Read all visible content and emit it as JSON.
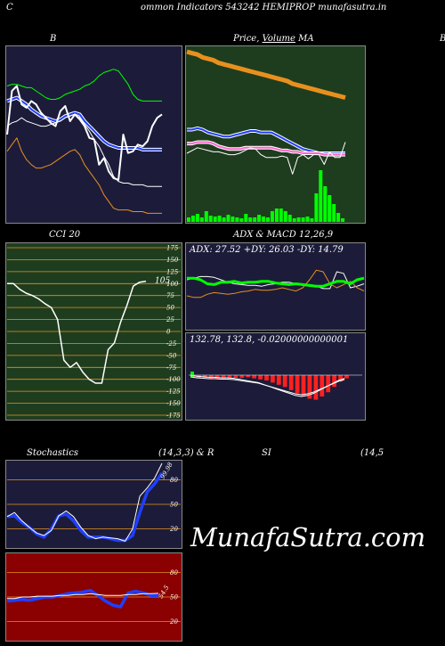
{
  "header": {
    "title": "ommon  Indicators 543242  HEMIPROP munafasutra.in",
    "left_letter": "C"
  },
  "watermark": "MunafaSutra.com",
  "panels": {
    "bollinger": {
      "title": "B",
      "right_edge_label": "B"
    },
    "price": {
      "title_a": "Price,",
      "title_b": "Volume",
      "title_c": "MA"
    },
    "cci": {
      "title": "CCI 20",
      "value_label": "105"
    },
    "adx_macd": {
      "title": "ADX  & MACD 12,26,9",
      "adx_text": "ADX: 27.52  +DY: 26.03 -DY: 14.79",
      "macd_text": "132.78,  132.8,  -0.02000000000001"
    },
    "stochastics": {
      "title": "Stochastics",
      "params": "(14,3,3) & R",
      "value_label": "99.98"
    },
    "rsi": {
      "title": "SI",
      "params": "(14,5",
      "value_label": "54.5"
    }
  },
  "colors": {
    "dark_navy": "#1c1c3a",
    "dark_green": "#1e3d1e",
    "dark_red": "#8b0000",
    "orange": "#e8901e",
    "blue": "#1f3fff",
    "green_bright": "#00ff00",
    "white": "#ffffff"
  },
  "chart_data": [
    {
      "type": "line",
      "name": "bollinger",
      "ylim": [
        0,
        100
      ],
      "series": [
        {
          "values": [
            79,
            80,
            80,
            79,
            78,
            78,
            76,
            74,
            72,
            71,
            71,
            72,
            74,
            75,
            76,
            77,
            79,
            80,
            82,
            85,
            87,
            88,
            89,
            88,
            84,
            80,
            74,
            71,
            70,
            70,
            70,
            70,
            70
          ]
        },
        {
          "values": [
            70,
            71,
            72,
            70,
            68,
            65,
            63,
            61,
            60,
            59,
            58,
            59,
            61,
            62,
            63,
            62,
            58,
            55,
            52,
            49,
            46,
            44,
            43,
            42,
            42,
            42,
            42,
            42,
            41,
            41,
            41,
            41,
            41
          ]
        },
        {
          "values": [
            55,
            57,
            58,
            60,
            58,
            57,
            56,
            55,
            55,
            56,
            57,
            58,
            60,
            61,
            62,
            60,
            56,
            52,
            47,
            43,
            37,
            32,
            25,
            22,
            21,
            21,
            20,
            20,
            20,
            19,
            19,
            19,
            19
          ]
        },
        {
          "values": [
            40,
            44,
            48,
            40,
            35,
            32,
            30,
            30,
            31,
            32,
            34,
            36,
            38,
            40,
            41,
            38,
            32,
            28,
            24,
            20,
            14,
            10,
            6,
            5,
            5,
            5,
            4,
            4,
            4,
            3,
            3,
            3,
            3
          ]
        },
        {
          "values": [
            50,
            76,
            79,
            68,
            66,
            70,
            68,
            63,
            60,
            57,
            55,
            64,
            67,
            58,
            62,
            59,
            55,
            48,
            47,
            32,
            36,
            28,
            24,
            23,
            50,
            39,
            40,
            44,
            43,
            46,
            55,
            60,
            62
          ]
        }
      ]
    },
    {
      "type": "line",
      "name": "price-ma",
      "ylim": [
        0,
        100
      ],
      "series": [
        {
          "values": [
            98,
            97,
            96,
            94,
            93,
            92,
            90,
            89,
            88,
            87,
            86,
            85,
            84,
            83,
            82,
            81,
            80,
            79,
            78,
            77,
            75,
            74,
            73,
            72,
            71,
            70,
            69,
            68,
            67,
            66,
            65
          ]
        },
        {
          "values": [
            42,
            42,
            43,
            42,
            40,
            39,
            38,
            37,
            37,
            38,
            39,
            40,
            41,
            41,
            40,
            40,
            40,
            38,
            36,
            34,
            32,
            30,
            28,
            27,
            26,
            25,
            25,
            25,
            25,
            25,
            25
          ]
        },
        {
          "values": [
            32,
            32,
            33,
            33,
            33,
            32,
            30,
            29,
            28,
            28,
            28,
            29,
            29,
            29,
            29,
            29,
            29,
            28,
            27,
            27,
            26,
            26,
            25,
            25,
            25,
            25,
            24,
            24,
            24,
            24,
            24
          ]
        },
        {
          "values": [
            25,
            27,
            29,
            28,
            27,
            26,
            26,
            25,
            24,
            24,
            25,
            27,
            29,
            28,
            24,
            22,
            22,
            22,
            23,
            22,
            10,
            22,
            24,
            21,
            24,
            24,
            17,
            26,
            22,
            22,
            33
          ]
        }
      ]
    },
    {
      "type": "bar",
      "name": "volume",
      "ylim": [
        0,
        100
      ],
      "values": [
        5,
        7,
        9,
        5,
        12,
        7,
        6,
        7,
        5,
        8,
        6,
        5,
        4,
        9,
        5,
        5,
        8,
        6,
        5,
        12,
        15,
        15,
        12,
        8,
        4,
        5,
        5,
        6,
        4,
        32,
        58,
        40,
        30,
        20,
        10,
        4
      ]
    },
    {
      "type": "line",
      "name": "cci",
      "ylim": [
        -175,
        175
      ],
      "tick_labels": [
        "175",
        "150",
        "125",
        "100",
        "75",
        "50",
        "25",
        "0",
        "-25",
        "-50",
        "-75",
        "-100",
        "-125",
        "-150",
        "-175"
      ],
      "values": [
        100,
        100,
        88,
        80,
        75,
        68,
        58,
        50,
        25,
        -60,
        -75,
        -65,
        -85,
        -100,
        -108,
        -108,
        -38,
        -24,
        20,
        55,
        95,
        103,
        105
      ]
    },
    {
      "type": "line",
      "name": "adx",
      "ylim": [
        0,
        100
      ],
      "series": [
        {
          "values": [
            62,
            62,
            60,
            55,
            54,
            57,
            57,
            58,
            56,
            57,
            57,
            58,
            58,
            56,
            55,
            54,
            55,
            54,
            53,
            52,
            52,
            55,
            58,
            58,
            55,
            60,
            62
          ]
        },
        {
          "values": [
            60,
            62,
            64,
            64,
            63,
            60,
            57,
            55,
            54,
            53,
            53,
            52,
            54,
            55,
            57,
            57,
            55,
            53,
            52,
            52,
            49,
            49,
            70,
            68,
            50,
            52,
            55
          ]
        },
        {
          "values": [
            40,
            38,
            38,
            42,
            44,
            43,
            42,
            43,
            45,
            46,
            48,
            47,
            47,
            48,
            50,
            48,
            46,
            50,
            60,
            72,
            70,
            55,
            50,
            54,
            58,
            50,
            46
          ]
        }
      ]
    },
    {
      "type": "bar",
      "name": "macd-histogram",
      "ylim": [
        -100,
        10
      ],
      "values": [
        -4,
        -5,
        -5,
        -6,
        -7,
        -6,
        -6,
        -5,
        -5,
        -4,
        -6,
        -8,
        -10,
        -14,
        -18,
        -22,
        -28,
        -34,
        -40,
        -44,
        -46,
        -40,
        -32,
        -22,
        -12,
        -6
      ]
    },
    {
      "type": "line",
      "name": "stochastics",
      "ylim": [
        0,
        100
      ],
      "tick_labels": [
        "80",
        "50",
        "20"
      ],
      "series": [
        {
          "values": [
            35,
            36,
            28,
            22,
            14,
            10,
            20,
            36,
            38,
            30,
            18,
            10,
            10,
            10,
            8,
            6,
            6,
            12,
            40,
            65,
            75,
            88
          ]
        },
        {
          "values": [
            35,
            40,
            30,
            22,
            15,
            12,
            18,
            36,
            42,
            35,
            22,
            12,
            8,
            10,
            9,
            8,
            5,
            20,
            60,
            70,
            82,
            99.98
          ]
        }
      ]
    },
    {
      "type": "line",
      "name": "rsi",
      "ylim": [
        0,
        100
      ],
      "tick_labels": [
        "80",
        "50",
        "20"
      ],
      "series": [
        {
          "values": [
            45,
            46,
            47,
            46,
            48,
            50,
            50,
            52,
            54,
            55,
            56,
            58,
            52,
            45,
            40,
            38,
            55,
            57,
            55,
            52,
            52
          ]
        },
        {
          "values": [
            48,
            48,
            50,
            50,
            51,
            51,
            51,
            52,
            52,
            53,
            53,
            54,
            53,
            52,
            52,
            52,
            53,
            53,
            54,
            54,
            54.5
          ]
        }
      ]
    }
  ]
}
